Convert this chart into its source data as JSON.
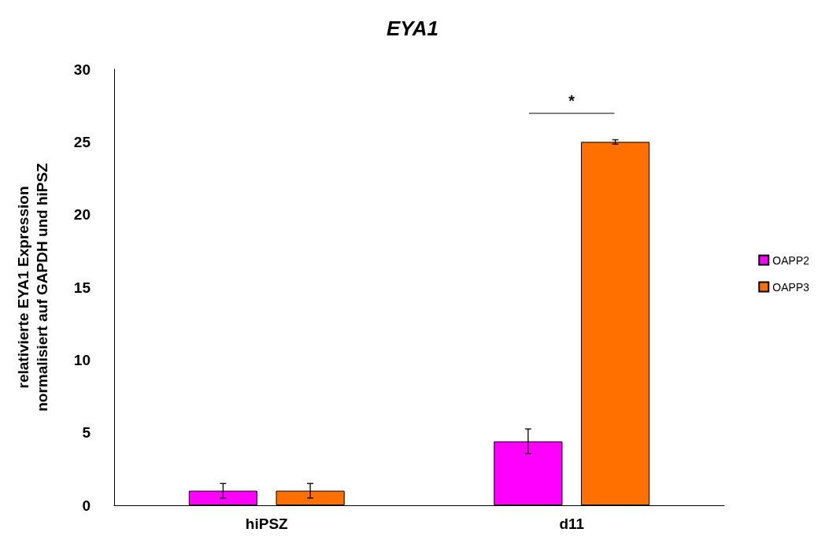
{
  "chart_data": {
    "type": "bar",
    "title": "EYA1",
    "ylabel": "relativierte EYA1 Expression normalisiert auf GAPDH und hiPSZ",
    "categories": [
      "hiPSZ",
      "d11"
    ],
    "series": [
      {
        "name": "OAPP2",
        "color": "#ff00ff",
        "values": [
          1,
          4.4
        ],
        "errors": [
          0.5,
          0.85
        ]
      },
      {
        "name": "OAPP3",
        "color": "#ff7000",
        "values": [
          1,
          25
        ],
        "errors": [
          0.5,
          0.15
        ]
      }
    ],
    "ylim": [
      0,
      30
    ],
    "yticks": [
      0,
      5,
      10,
      15,
      20,
      25,
      30
    ],
    "grid": false,
    "legend": "right",
    "annotations": [
      "*"
    ]
  }
}
